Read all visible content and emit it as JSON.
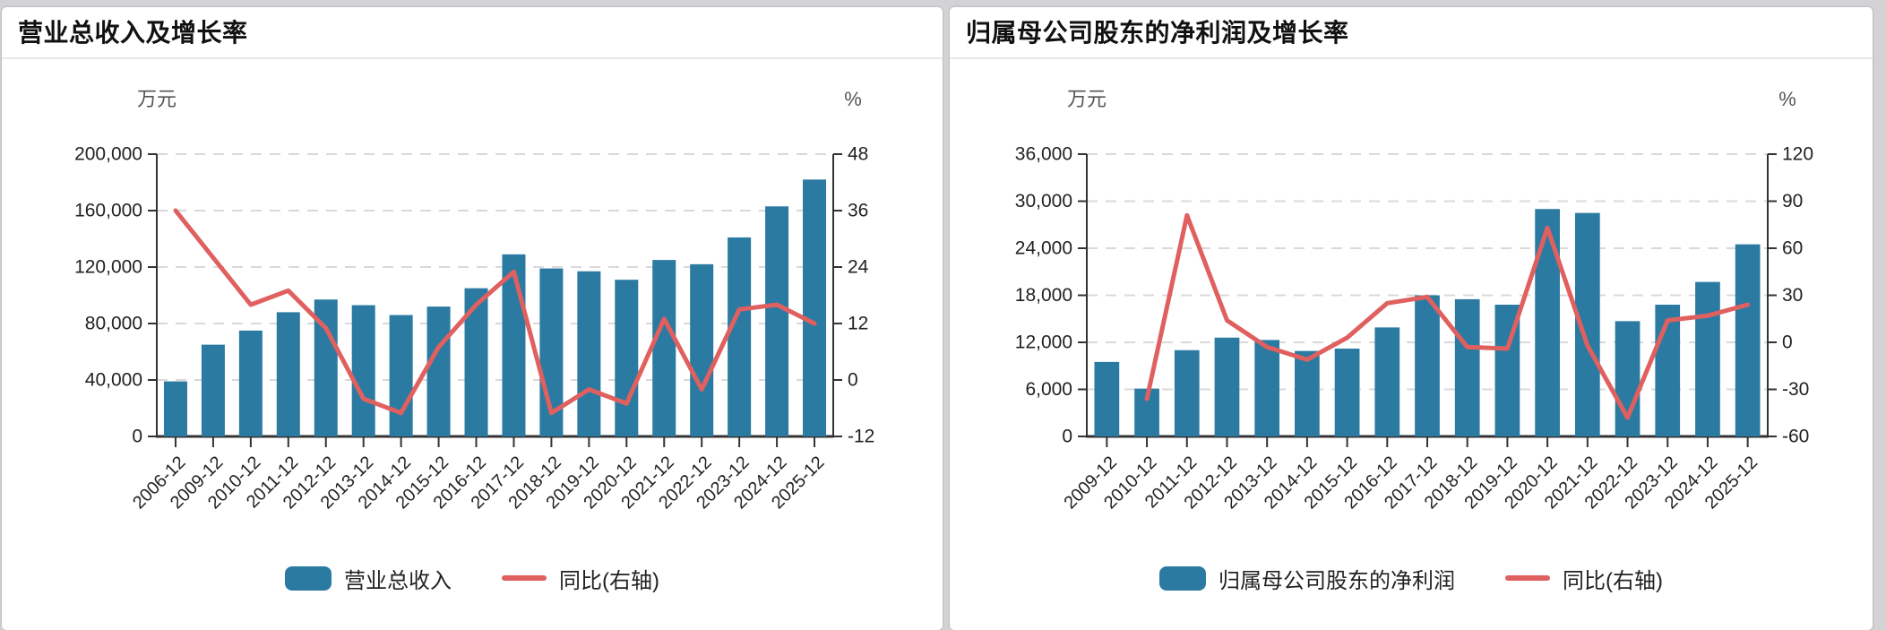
{
  "colors": {
    "bar": "#2b7aa2",
    "line": "#e0605f",
    "axis": "#333333",
    "grid": "#d9d9d9"
  },
  "chart_data": [
    {
      "type": "bar+line",
      "title": "营业总收入及增长率",
      "categories": [
        "2006-12",
        "2009-12",
        "2010-12",
        "2011-12",
        "2012-12",
        "2013-12",
        "2014-12",
        "2015-12",
        "2016-12",
        "2017-12",
        "2018-12",
        "2019-12",
        "2020-12",
        "2021-12",
        "2022-12",
        "2023-12",
        "2024-12",
        "2025-12"
      ],
      "series": [
        {
          "name": "营业总收入",
          "type": "bar",
          "axis": "left",
          "unit": "万元",
          "values": [
            39000,
            65000,
            75000,
            88000,
            97000,
            93000,
            86000,
            92000,
            105000,
            129000,
            119000,
            117000,
            111000,
            125000,
            122000,
            141000,
            163000,
            182000
          ]
        },
        {
          "name": "同比(右轴)",
          "type": "line",
          "axis": "right",
          "unit": "%",
          "values": [
            36,
            26,
            16,
            19,
            11,
            -4,
            -7,
            7,
            16,
            23,
            -7,
            -2,
            -5,
            13,
            -2,
            15,
            16,
            12
          ]
        }
      ],
      "left_axis": {
        "label": "万元",
        "min": 0,
        "max": 200000,
        "tick_step": 40000,
        "ticks": [
          "200,000",
          "160,000",
          "120,000",
          "80,000",
          "40,000",
          "0"
        ]
      },
      "right_axis": {
        "label": "%",
        "min": -12,
        "max": 48,
        "tick_step": 12,
        "ticks": [
          "48",
          "36",
          "24",
          "12",
          "0",
          "-12"
        ]
      },
      "grid": "dashed-horizontal",
      "legend_position": "bottom",
      "x_label_rotation": 45
    },
    {
      "type": "bar+line",
      "title": "归属母公司股东的净利润及增长率",
      "categories": [
        "2009-12",
        "2010-12",
        "2011-12",
        "2012-12",
        "2013-12",
        "2014-12",
        "2015-12",
        "2016-12",
        "2017-12",
        "2018-12",
        "2019-12",
        "2020-12",
        "2021-12",
        "2022-12",
        "2023-12",
        "2024-12",
        "2025-12"
      ],
      "series": [
        {
          "name": "归属母公司股东的净利润",
          "type": "bar",
          "axis": "left",
          "unit": "万元",
          "values": [
            9500,
            6100,
            11000,
            12600,
            12300,
            10900,
            11200,
            13900,
            18000,
            17500,
            16800,
            29000,
            28500,
            14700,
            16800,
            19700,
            24500
          ]
        },
        {
          "name": "同比(右轴)",
          "type": "line",
          "axis": "right",
          "unit": "%",
          "values": [
            null,
            -36,
            81,
            14,
            -3,
            -11,
            3,
            25,
            29,
            -3,
            -4,
            73,
            -2,
            -48,
            14,
            17,
            24
          ]
        }
      ],
      "left_axis": {
        "label": "万元",
        "min": 0,
        "max": 36000,
        "tick_step": 6000,
        "ticks": [
          "36,000",
          "30,000",
          "24,000",
          "18,000",
          "12,000",
          "6,000",
          "0"
        ]
      },
      "right_axis": {
        "label": "%",
        "min": -60,
        "max": 120,
        "tick_step": 30,
        "ticks": [
          "120",
          "90",
          "60",
          "30",
          "0",
          "-30",
          "-60"
        ]
      },
      "grid": "dashed-horizontal",
      "legend_position": "bottom",
      "x_label_rotation": 45
    }
  ]
}
